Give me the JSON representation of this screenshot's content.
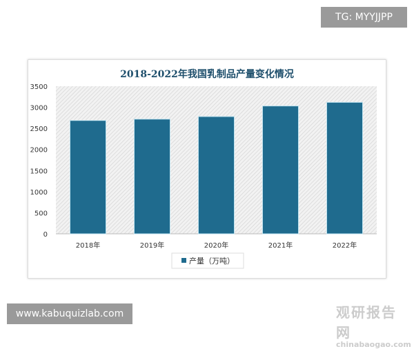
{
  "overlay": {
    "tg": "TG: MYYJJPP",
    "site": "www.kabuquizlab.com"
  },
  "watermark": {
    "cn": "观研报告网",
    "en": "chinabaogao.com"
  },
  "chart_data": {
    "type": "bar",
    "title": "2018-2022年我国乳制品产量变化情况",
    "categories": [
      "2018年",
      "2019年",
      "2020年",
      "2021年",
      "2022年"
    ],
    "series": [
      {
        "name": "产量（万吨）",
        "values": [
          2687.1,
          2719.4,
          2780.4,
          3031.7,
          3117.7
        ],
        "color": "#1f6b8e"
      }
    ],
    "ylim": [
      0,
      3500
    ],
    "yticks": [
      0,
      500,
      1000,
      1500,
      2000,
      2500,
      3000,
      3500
    ],
    "legend": "bottom",
    "grid": false,
    "background": "hatched-gray"
  }
}
